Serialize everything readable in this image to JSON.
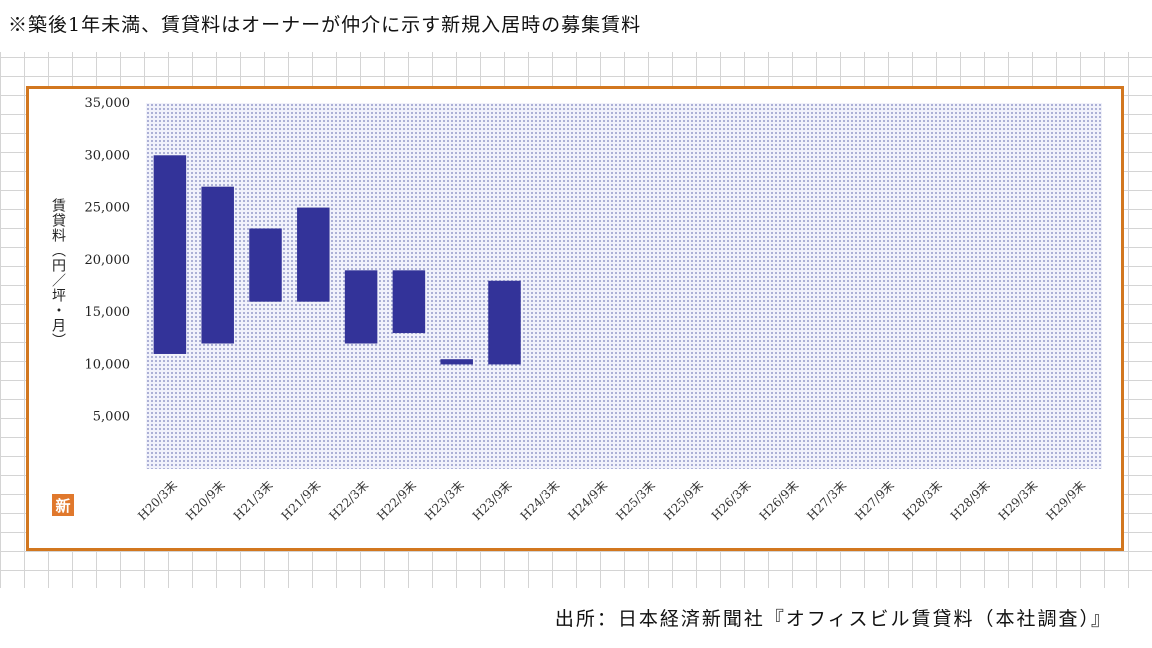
{
  "note": "※築後1年未満、賃貸料はオーナーが仲介に示す新規入居時の募集賃料",
  "source": "出所：日本経済新聞社『オフィスビル賃貸料（本社調査）』",
  "logo_text": "新",
  "colors": {
    "bar": "#333399",
    "frame": "#d2771f",
    "logo": "#e0782c"
  },
  "chart_data": {
    "type": "bar",
    "subtype": "floating-range",
    "title": "",
    "xlabel": "",
    "ylabel": "賃貸料（円／坪・月）",
    "ylim": [
      0,
      35000
    ],
    "yticks": [
      5000,
      10000,
      15000,
      20000,
      25000,
      30000,
      35000
    ],
    "ytick_labels": [
      "5,000",
      "10,000",
      "15,000",
      "20,000",
      "25,000",
      "30,000",
      "35,000"
    ],
    "grid": false,
    "categories": [
      "H20/3末",
      "H20/9末",
      "H21/3末",
      "H21/9末",
      "H22/3末",
      "H22/9末",
      "H23/3末",
      "H23/9末",
      "H24/3末",
      "H24/9末",
      "H25/3末",
      "H25/9末",
      "H26/3末",
      "H26/9末",
      "H27/3末",
      "H27/9末",
      "H28/3末",
      "H28/9末",
      "H29/3末",
      "H29/9末"
    ],
    "series": [
      {
        "low": [
          11000,
          12000,
          16000,
          16000,
          12000,
          13000,
          10000,
          10000,
          null,
          null,
          null,
          null,
          null,
          null,
          null,
          null,
          null,
          null,
          null,
          null
        ],
        "high": [
          30000,
          27000,
          23000,
          25000,
          19000,
          19000,
          10500,
          18000,
          null,
          null,
          null,
          null,
          null,
          null,
          null,
          null,
          null,
          null,
          null,
          null
        ]
      }
    ]
  }
}
